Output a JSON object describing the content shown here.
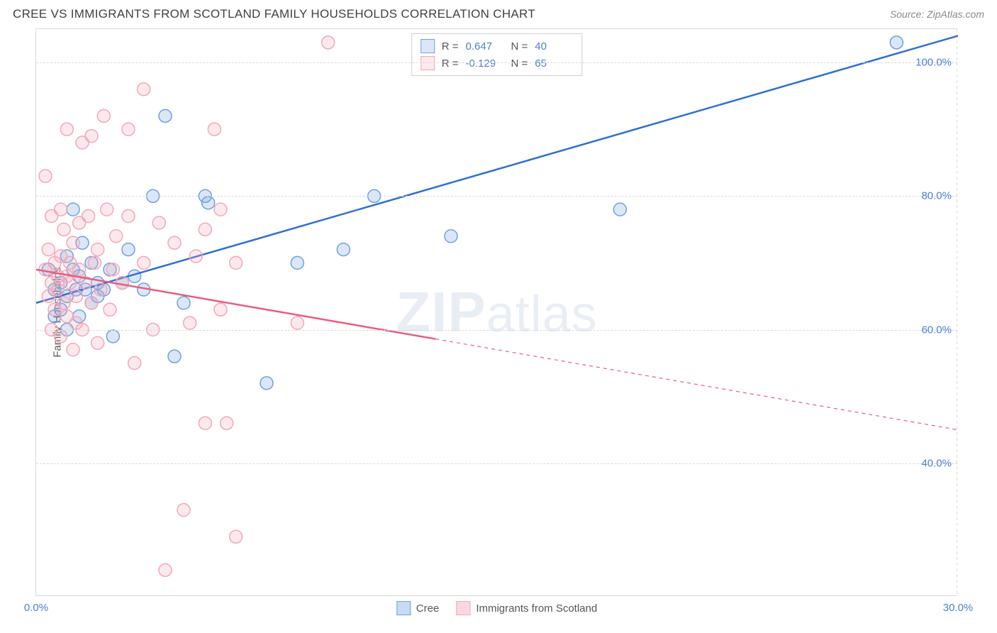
{
  "title": "CREE VS IMMIGRANTS FROM SCOTLAND FAMILY HOUSEHOLDS CORRELATION CHART",
  "source": "Source: ZipAtlas.com",
  "watermark_a": "ZIP",
  "watermark_b": "atlas",
  "chart": {
    "type": "scatter",
    "background_color": "#ffffff",
    "border_color": "#d9d9d9",
    "grid_color": "#d9d9d9",
    "axis_text_color": "#4a7fd8",
    "xlim": [
      0,
      30
    ],
    "ylim": [
      20,
      105
    ],
    "x_ticks": [
      {
        "v": 0,
        "label": "0.0%"
      },
      {
        "v": 30,
        "label": "30.0%"
      }
    ],
    "y_ticks": [
      {
        "v": 40,
        "label": "40.0%"
      },
      {
        "v": 60,
        "label": "60.0%"
      },
      {
        "v": 80,
        "label": "80.0%"
      },
      {
        "v": 100,
        "label": "100.0%"
      }
    ],
    "y_axis_title": "Family Households",
    "marker_radius": 9,
    "marker_stroke_width": 1.5,
    "marker_fill_opacity": 0.25,
    "trend_line_width": 2.5,
    "series": [
      {
        "name": "Cree",
        "color": "#6fa1e0",
        "line_color": "#2e6fd6",
        "R": "0.647",
        "N": "40",
        "trend": {
          "x1": 0,
          "y1": 64,
          "x2": 30,
          "y2": 104,
          "dash_from_x": null
        },
        "points": [
          [
            0.4,
            69
          ],
          [
            0.6,
            66
          ],
          [
            0.6,
            62
          ],
          [
            0.8,
            67
          ],
          [
            0.8,
            63
          ],
          [
            1.0,
            71
          ],
          [
            1.0,
            60
          ],
          [
            1.0,
            65
          ],
          [
            1.2,
            78
          ],
          [
            1.2,
            69
          ],
          [
            1.3,
            66
          ],
          [
            1.4,
            62
          ],
          [
            1.4,
            68
          ],
          [
            1.5,
            73
          ],
          [
            1.6,
            66
          ],
          [
            1.8,
            64
          ],
          [
            1.8,
            70
          ],
          [
            2.0,
            65
          ],
          [
            2.0,
            67
          ],
          [
            2.2,
            66
          ],
          [
            2.4,
            69
          ],
          [
            2.5,
            59
          ],
          [
            2.8,
            67
          ],
          [
            3.0,
            72
          ],
          [
            3.2,
            68
          ],
          [
            3.5,
            66
          ],
          [
            3.8,
            80
          ],
          [
            4.2,
            92
          ],
          [
            4.5,
            56
          ],
          [
            4.8,
            64
          ],
          [
            5.5,
            80
          ],
          [
            5.6,
            79
          ],
          [
            7.5,
            52
          ],
          [
            8.5,
            70
          ],
          [
            10.0,
            72
          ],
          [
            11.0,
            80
          ],
          [
            13.0,
            103
          ],
          [
            13.5,
            74
          ],
          [
            19.0,
            78
          ],
          [
            28.0,
            103
          ]
        ]
      },
      {
        "name": "Immigrants from Scotland",
        "color": "#f2a8b8",
        "line_color": "#e85c7e",
        "R": "-0.129",
        "N": "65",
        "trend": {
          "x1": 0,
          "y1": 69,
          "x2": 30,
          "y2": 45,
          "dash_from_x": 13
        },
        "points": [
          [
            0.3,
            83
          ],
          [
            0.3,
            69
          ],
          [
            0.4,
            65
          ],
          [
            0.4,
            72
          ],
          [
            0.5,
            60
          ],
          [
            0.5,
            67
          ],
          [
            0.5,
            77
          ],
          [
            0.6,
            70
          ],
          [
            0.6,
            63
          ],
          [
            0.7,
            68
          ],
          [
            0.7,
            66
          ],
          [
            0.8,
            59
          ],
          [
            0.8,
            71
          ],
          [
            0.8,
            78
          ],
          [
            0.9,
            75
          ],
          [
            0.9,
            64
          ],
          [
            1.0,
            68
          ],
          [
            1.0,
            62
          ],
          [
            1.0,
            90
          ],
          [
            1.1,
            67
          ],
          [
            1.1,
            70
          ],
          [
            1.2,
            57
          ],
          [
            1.2,
            73
          ],
          [
            1.3,
            65
          ],
          [
            1.3,
            61
          ],
          [
            1.4,
            69
          ],
          [
            1.4,
            76
          ],
          [
            1.5,
            60
          ],
          [
            1.5,
            88
          ],
          [
            1.6,
            67
          ],
          [
            1.7,
            77
          ],
          [
            1.8,
            89
          ],
          [
            1.8,
            64
          ],
          [
            1.9,
            70
          ],
          [
            2.0,
            72
          ],
          [
            2.0,
            58
          ],
          [
            2.1,
            66
          ],
          [
            2.2,
            92
          ],
          [
            2.3,
            78
          ],
          [
            2.4,
            63
          ],
          [
            2.5,
            69
          ],
          [
            2.6,
            74
          ],
          [
            2.8,
            67
          ],
          [
            3.0,
            90
          ],
          [
            3.0,
            77
          ],
          [
            3.2,
            55
          ],
          [
            3.5,
            70
          ],
          [
            3.5,
            96
          ],
          [
            3.8,
            60
          ],
          [
            4.0,
            76
          ],
          [
            4.2,
            24
          ],
          [
            4.5,
            73
          ],
          [
            4.8,
            33
          ],
          [
            5.0,
            61
          ],
          [
            5.2,
            71
          ],
          [
            5.5,
            46
          ],
          [
            5.5,
            75
          ],
          [
            5.8,
            90
          ],
          [
            6.0,
            63
          ],
          [
            6.0,
            78
          ],
          [
            6.5,
            29
          ],
          [
            6.5,
            70
          ],
          [
            8.5,
            61
          ],
          [
            9.5,
            103
          ],
          [
            6.2,
            46
          ]
        ]
      }
    ],
    "legend_bottom": [
      {
        "label": "Cree",
        "color_fill": "#c7dbf4",
        "color_border": "#6fa1e0"
      },
      {
        "label": "Immigrants from Scotland",
        "color_fill": "#fbd8e0",
        "color_border": "#f2a8b8"
      }
    ]
  }
}
